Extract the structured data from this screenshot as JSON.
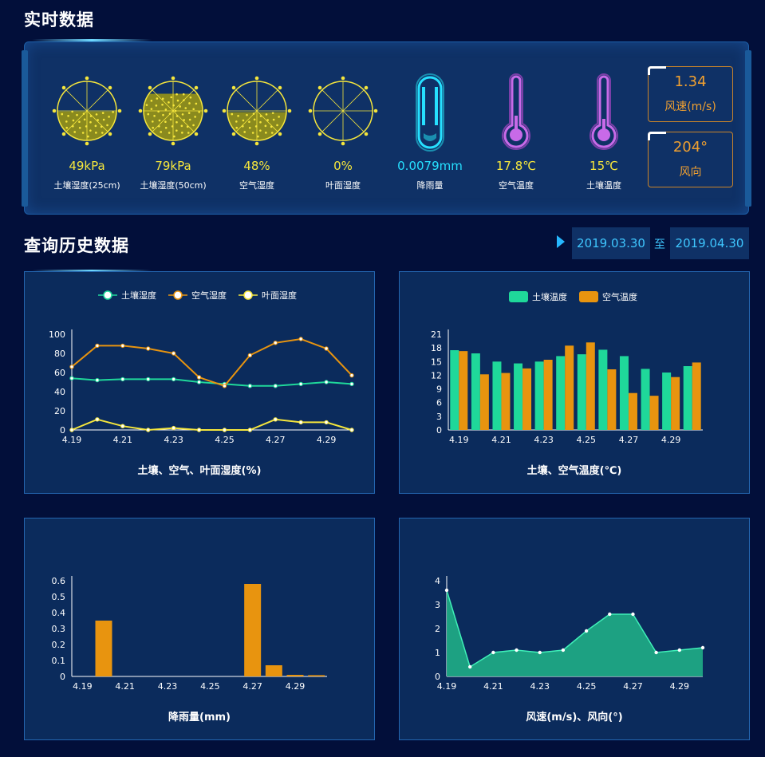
{
  "sections": {
    "realtime": "实时数据",
    "history": "查询历史数据"
  },
  "realtime": {
    "gauges": [
      {
        "value": "49kPa",
        "label": "土壤湿度(25cm)",
        "fill": 0.49
      },
      {
        "value": "79kPa",
        "label": "土壤湿度(50cm)",
        "fill": 0.79
      },
      {
        "value": "48%",
        "label": "空气湿度",
        "fill": 0.48
      },
      {
        "value": "0%",
        "label": "叶面湿度",
        "fill": 0
      }
    ],
    "rain": {
      "value": "0.0079mm",
      "label": "降雨量"
    },
    "air_temp": {
      "value": "17.8℃",
      "label": "空气温度"
    },
    "soil_temp": {
      "value": "15℃",
      "label": "土壤温度"
    },
    "wind_speed": {
      "value": "1.34",
      "label": "风速(m/s)"
    },
    "wind_dir": {
      "value": "204°",
      "label": "风向"
    }
  },
  "date_range": {
    "start": "2019.03.30",
    "sep": "至",
    "end": "2019.04.30"
  },
  "colors": {
    "yellow": "#f5e63c",
    "green": "#1fd89a",
    "orange": "#e8940f",
    "cyan": "#26e0ff",
    "purple": "#c86ae8"
  },
  "chart_data": [
    {
      "type": "line",
      "title": "土壤、空气、叶面湿度(%)",
      "x": [
        "4.19",
        "4.20",
        "4.21",
        "4.22",
        "4.23",
        "4.24",
        "4.25",
        "4.26",
        "4.27",
        "4.28",
        "4.29",
        "4.30"
      ],
      "xticks": [
        "4.19",
        "4.21",
        "4.23",
        "4.25",
        "4.27",
        "4.29"
      ],
      "yticks": [
        0,
        20,
        40,
        60,
        80,
        100
      ],
      "ylim": [
        0,
        100
      ],
      "series": [
        {
          "name": "土壤湿度",
          "color": "#1fd89a",
          "values": [
            54,
            52,
            53,
            53,
            53,
            50,
            48,
            46,
            46,
            48,
            50,
            48
          ]
        },
        {
          "name": "空气湿度",
          "color": "#e8940f",
          "values": [
            66,
            88,
            88,
            85,
            80,
            55,
            46,
            78,
            91,
            95,
            85,
            57
          ]
        },
        {
          "name": "叶面湿度",
          "color": "#f5e63c",
          "values": [
            0,
            11,
            4,
            0,
            2,
            0,
            0,
            0,
            11,
            8,
            8,
            0
          ]
        }
      ]
    },
    {
      "type": "bar",
      "title": "土壤、空气温度(℃)",
      "x": [
        "4.19",
        "4.20",
        "4.21",
        "4.22",
        "4.23",
        "4.24",
        "4.25",
        "4.26",
        "4.27",
        "4.28",
        "4.29",
        "4.30"
      ],
      "xticks": [
        "4.19",
        "4.21",
        "4.23",
        "4.25",
        "4.27",
        "4.29"
      ],
      "yticks": [
        0,
        3,
        6,
        9,
        12,
        15,
        18,
        21
      ],
      "ylim": [
        0,
        21
      ],
      "series": [
        {
          "name": "土壤温度",
          "color": "#1fd89a",
          "values": [
            17.5,
            16.8,
            15,
            14.6,
            15,
            16.2,
            16.6,
            17.6,
            16.2,
            13.4,
            12.6,
            14
          ]
        },
        {
          "name": "空气温度",
          "color": "#e8940f",
          "values": [
            17.3,
            12.2,
            12.5,
            13.5,
            15.4,
            18.5,
            19.2,
            13.3,
            8.1,
            7.5,
            11.6,
            14.8
          ]
        }
      ]
    },
    {
      "type": "bar",
      "title": "降雨量(mm)",
      "x": [
        "4.19",
        "4.20",
        "4.21",
        "4.22",
        "4.23",
        "4.24",
        "4.25",
        "4.26",
        "4.27",
        "4.28",
        "4.29",
        "4.30"
      ],
      "xticks": [
        "4.19",
        "4.21",
        "4.23",
        "4.25",
        "4.27",
        "4.29"
      ],
      "yticks": [
        0,
        0.1,
        0.2,
        0.3,
        0.4,
        0.5,
        0.6
      ],
      "ylim": [
        0,
        0.6
      ],
      "series": [
        {
          "name": "降雨量",
          "color": "#e8940f",
          "values": [
            0,
            0.35,
            0,
            0,
            0,
            0,
            0,
            0,
            0.58,
            0.07,
            0.01,
            0.008
          ]
        }
      ]
    },
    {
      "type": "area",
      "title": "风速(m/s)、风向(°)",
      "x": [
        "4.19",
        "4.20",
        "4.21",
        "4.22",
        "4.23",
        "4.24",
        "4.25",
        "4.26",
        "4.27",
        "4.28",
        "4.29",
        "4.30"
      ],
      "xticks": [
        "4.19",
        "4.21",
        "4.23",
        "4.25",
        "4.27",
        "4.29"
      ],
      "yticks": [
        0,
        1,
        2,
        3,
        4
      ],
      "ylim": [
        0,
        4
      ],
      "series": [
        {
          "name": "风速",
          "color": "#1fd89a",
          "values": [
            3.6,
            0.4,
            1,
            1.1,
            1,
            1.1,
            1.9,
            2.6,
            2.6,
            1,
            1.1,
            1.2
          ]
        }
      ]
    }
  ]
}
